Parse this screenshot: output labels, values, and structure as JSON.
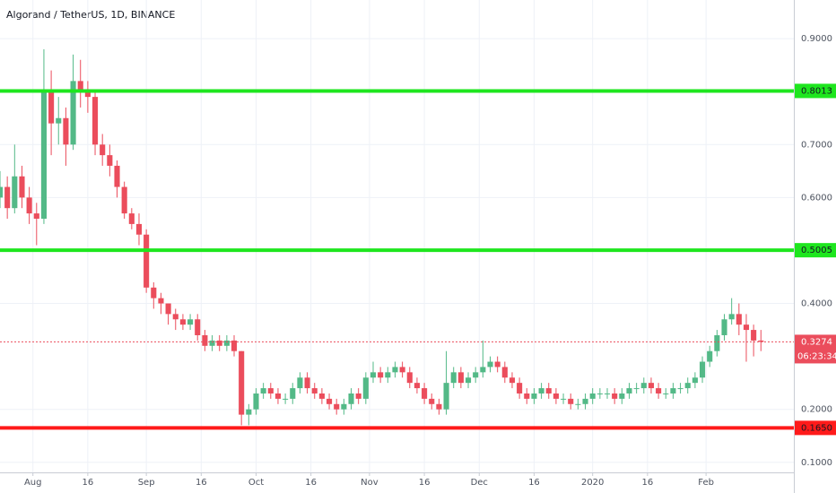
{
  "chart_data": {
    "type": "candlestick",
    "title": "Algorand / TetherUS, 1D, BINANCE",
    "up_color": "#53b987",
    "down_color": "#eb4d5c",
    "xlim": [
      0,
      217
    ],
    "ylim": [
      0.081,
      0.973
    ],
    "grid": true,
    "xticks": [
      {
        "value": 9,
        "label": "Aug"
      },
      {
        "value": 24,
        "label": "16"
      },
      {
        "value": 40,
        "label": "Sep"
      },
      {
        "value": 55,
        "label": "16"
      },
      {
        "value": 70,
        "label": "Oct"
      },
      {
        "value": 85,
        "label": "16"
      },
      {
        "value": 101,
        "label": "Nov"
      },
      {
        "value": 116,
        "label": "16"
      },
      {
        "value": 131,
        "label": "Dec"
      },
      {
        "value": 146,
        "label": "16"
      },
      {
        "value": 162,
        "label": "2020"
      },
      {
        "value": 177,
        "label": "16"
      },
      {
        "value": 193,
        "label": "Feb"
      }
    ],
    "yticks": [
      {
        "value": 0.1,
        "label": "0.1000"
      },
      {
        "value": 0.2,
        "label": "0.2000"
      },
      {
        "value": 0.4,
        "label": "0.4000"
      },
      {
        "value": 0.6,
        "label": "0.6000"
      },
      {
        "value": 0.7,
        "label": "0.7000"
      },
      {
        "value": 0.9,
        "label": "0.9000"
      }
    ],
    "levels": {
      "values": [
        0.8013,
        0.5005,
        0.165
      ],
      "value_labels": [
        "0.8013",
        "0.5005",
        "0.1650"
      ],
      "colors": [
        "#1ee61e",
        "#1ee61e",
        "#ff1a1a"
      ]
    },
    "last_price": {
      "value": 0.3274,
      "color": "#eb4d5c",
      "countdown": "06:23:34"
    },
    "candles": [
      [
        0,
        0.6,
        0.65,
        0.58,
        0.62
      ],
      [
        2,
        0.62,
        0.64,
        0.56,
        0.58
      ],
      [
        4,
        0.58,
        0.7,
        0.57,
        0.64
      ],
      [
        6,
        0.64,
        0.66,
        0.58,
        0.6
      ],
      [
        8,
        0.6,
        0.62,
        0.55,
        0.57
      ],
      [
        10,
        0.57,
        0.59,
        0.51,
        0.56
      ],
      [
        12,
        0.56,
        0.88,
        0.55,
        0.8
      ],
      [
        14,
        0.8,
        0.84,
        0.68,
        0.74
      ],
      [
        16,
        0.74,
        0.79,
        0.7,
        0.75
      ],
      [
        18,
        0.75,
        0.77,
        0.66,
        0.7
      ],
      [
        20,
        0.7,
        0.87,
        0.69,
        0.82
      ],
      [
        22,
        0.82,
        0.86,
        0.77,
        0.8
      ],
      [
        24,
        0.8,
        0.82,
        0.76,
        0.79
      ],
      [
        26,
        0.79,
        0.8,
        0.68,
        0.7
      ],
      [
        28,
        0.7,
        0.72,
        0.66,
        0.68
      ],
      [
        30,
        0.68,
        0.7,
        0.64,
        0.66
      ],
      [
        32,
        0.66,
        0.67,
        0.6,
        0.62
      ],
      [
        34,
        0.62,
        0.63,
        0.56,
        0.57
      ],
      [
        36,
        0.57,
        0.58,
        0.54,
        0.55
      ],
      [
        38,
        0.55,
        0.57,
        0.51,
        0.53
      ],
      [
        40,
        0.53,
        0.54,
        0.42,
        0.43
      ],
      [
        42,
        0.43,
        0.44,
        0.39,
        0.41
      ],
      [
        44,
        0.41,
        0.42,
        0.38,
        0.4
      ],
      [
        46,
        0.4,
        0.4,
        0.36,
        0.38
      ],
      [
        48,
        0.38,
        0.39,
        0.35,
        0.37
      ],
      [
        50,
        0.37,
        0.38,
        0.35,
        0.36
      ],
      [
        52,
        0.36,
        0.38,
        0.35,
        0.37
      ],
      [
        54,
        0.37,
        0.38,
        0.33,
        0.34
      ],
      [
        56,
        0.34,
        0.35,
        0.31,
        0.32
      ],
      [
        58,
        0.32,
        0.34,
        0.31,
        0.33
      ],
      [
        60,
        0.33,
        0.34,
        0.31,
        0.32
      ],
      [
        62,
        0.32,
        0.34,
        0.31,
        0.33
      ],
      [
        64,
        0.33,
        0.34,
        0.3,
        0.31
      ],
      [
        66,
        0.31,
        0.31,
        0.17,
        0.19
      ],
      [
        68,
        0.19,
        0.21,
        0.17,
        0.2
      ],
      [
        70,
        0.2,
        0.24,
        0.19,
        0.23
      ],
      [
        72,
        0.23,
        0.25,
        0.22,
        0.24
      ],
      [
        74,
        0.24,
        0.25,
        0.22,
        0.23
      ],
      [
        76,
        0.23,
        0.24,
        0.21,
        0.22
      ],
      [
        78,
        0.22,
        0.23,
        0.21,
        0.22
      ],
      [
        80,
        0.22,
        0.25,
        0.21,
        0.24
      ],
      [
        82,
        0.24,
        0.27,
        0.23,
        0.26
      ],
      [
        84,
        0.26,
        0.27,
        0.23,
        0.24
      ],
      [
        86,
        0.24,
        0.25,
        0.22,
        0.23
      ],
      [
        88,
        0.23,
        0.24,
        0.21,
        0.22
      ],
      [
        90,
        0.22,
        0.23,
        0.2,
        0.21
      ],
      [
        92,
        0.21,
        0.22,
        0.19,
        0.2
      ],
      [
        94,
        0.2,
        0.22,
        0.19,
        0.21
      ],
      [
        96,
        0.21,
        0.24,
        0.2,
        0.23
      ],
      [
        98,
        0.23,
        0.24,
        0.21,
        0.22
      ],
      [
        100,
        0.22,
        0.27,
        0.21,
        0.26
      ],
      [
        102,
        0.26,
        0.29,
        0.25,
        0.27
      ],
      [
        104,
        0.27,
        0.28,
        0.25,
        0.26
      ],
      [
        106,
        0.26,
        0.28,
        0.25,
        0.27
      ],
      [
        108,
        0.27,
        0.29,
        0.26,
        0.28
      ],
      [
        110,
        0.28,
        0.29,
        0.26,
        0.27
      ],
      [
        112,
        0.27,
        0.28,
        0.24,
        0.25
      ],
      [
        114,
        0.25,
        0.26,
        0.23,
        0.24
      ],
      [
        116,
        0.24,
        0.25,
        0.21,
        0.22
      ],
      [
        118,
        0.22,
        0.23,
        0.2,
        0.21
      ],
      [
        120,
        0.21,
        0.22,
        0.19,
        0.2
      ],
      [
        122,
        0.2,
        0.31,
        0.19,
        0.25
      ],
      [
        124,
        0.25,
        0.28,
        0.24,
        0.27
      ],
      [
        126,
        0.27,
        0.28,
        0.24,
        0.25
      ],
      [
        128,
        0.25,
        0.27,
        0.24,
        0.26
      ],
      [
        130,
        0.26,
        0.28,
        0.25,
        0.27
      ],
      [
        132,
        0.27,
        0.33,
        0.26,
        0.28
      ],
      [
        134,
        0.28,
        0.3,
        0.27,
        0.29
      ],
      [
        136,
        0.29,
        0.3,
        0.27,
        0.28
      ],
      [
        138,
        0.28,
        0.29,
        0.25,
        0.26
      ],
      [
        140,
        0.26,
        0.27,
        0.24,
        0.25
      ],
      [
        142,
        0.25,
        0.26,
        0.22,
        0.23
      ],
      [
        144,
        0.23,
        0.24,
        0.21,
        0.22
      ],
      [
        146,
        0.22,
        0.24,
        0.21,
        0.23
      ],
      [
        148,
        0.23,
        0.25,
        0.22,
        0.24
      ],
      [
        150,
        0.24,
        0.25,
        0.22,
        0.23
      ],
      [
        152,
        0.23,
        0.24,
        0.21,
        0.22
      ],
      [
        154,
        0.22,
        0.23,
        0.21,
        0.22
      ],
      [
        156,
        0.22,
        0.23,
        0.2,
        0.21
      ],
      [
        158,
        0.21,
        0.22,
        0.2,
        0.21
      ],
      [
        160,
        0.21,
        0.23,
        0.2,
        0.22
      ],
      [
        162,
        0.22,
        0.24,
        0.21,
        0.23
      ],
      [
        164,
        0.23,
        0.24,
        0.22,
        0.23
      ],
      [
        166,
        0.23,
        0.24,
        0.22,
        0.23
      ],
      [
        168,
        0.23,
        0.24,
        0.21,
        0.22
      ],
      [
        170,
        0.22,
        0.24,
        0.21,
        0.23
      ],
      [
        172,
        0.23,
        0.25,
        0.22,
        0.24
      ],
      [
        174,
        0.24,
        0.25,
        0.23,
        0.24
      ],
      [
        176,
        0.24,
        0.26,
        0.23,
        0.25
      ],
      [
        178,
        0.25,
        0.26,
        0.23,
        0.24
      ],
      [
        180,
        0.24,
        0.25,
        0.22,
        0.23
      ],
      [
        182,
        0.23,
        0.24,
        0.22,
        0.23
      ],
      [
        184,
        0.23,
        0.25,
        0.22,
        0.24
      ],
      [
        186,
        0.24,
        0.25,
        0.23,
        0.24
      ],
      [
        188,
        0.24,
        0.26,
        0.23,
        0.25
      ],
      [
        190,
        0.25,
        0.27,
        0.24,
        0.26
      ],
      [
        192,
        0.26,
        0.3,
        0.25,
        0.29
      ],
      [
        194,
        0.29,
        0.32,
        0.28,
        0.31
      ],
      [
        196,
        0.31,
        0.35,
        0.3,
        0.34
      ],
      [
        198,
        0.34,
        0.38,
        0.33,
        0.37
      ],
      [
        200,
        0.37,
        0.41,
        0.36,
        0.38
      ],
      [
        202,
        0.38,
        0.4,
        0.34,
        0.36
      ],
      [
        204,
        0.36,
        0.38,
        0.29,
        0.35
      ],
      [
        206,
        0.35,
        0.36,
        0.3,
        0.33
      ],
      [
        208,
        0.33,
        0.35,
        0.31,
        0.3274
      ]
    ]
  }
}
